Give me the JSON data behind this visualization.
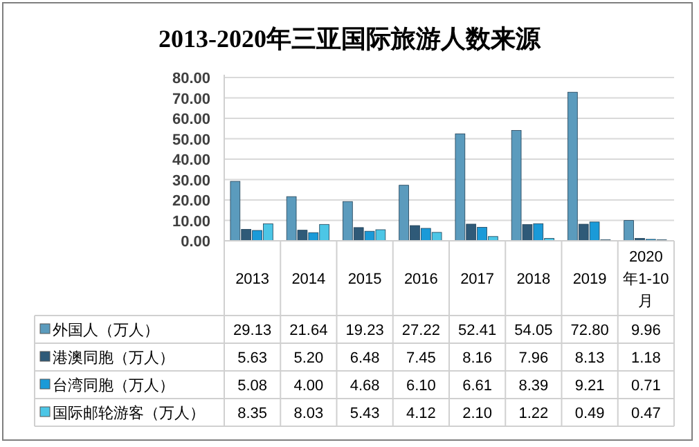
{
  "chart_data": {
    "type": "bar",
    "title": "2013-2020年三亚国际旅游人数来源",
    "categories": [
      "2013",
      "2014",
      "2015",
      "2016",
      "2017",
      "2018",
      "2019",
      "2020年1-10月"
    ],
    "series": [
      {
        "name": "外国人（万人）",
        "color": "#5b9bbd",
        "values": [
          29.13,
          21.64,
          19.23,
          27.22,
          52.41,
          54.05,
          72.8,
          9.96
        ],
        "value_labels": [
          "29.13",
          "21.64",
          "19.23",
          "27.22",
          "52.41",
          "54.05",
          "72.80",
          "9.96"
        ]
      },
      {
        "name": "港澳同胞（万人）",
        "color": "#2f5a78",
        "values": [
          5.63,
          5.2,
          6.48,
          7.45,
          8.16,
          7.96,
          8.13,
          1.18
        ],
        "value_labels": [
          "5.63",
          "5.20",
          "6.48",
          "7.45",
          "8.16",
          "7.96",
          "8.13",
          "1.18"
        ]
      },
      {
        "name": "台湾同胞（万人）",
        "color": "#1a9ad8",
        "values": [
          5.08,
          4.0,
          4.68,
          6.1,
          6.61,
          8.39,
          9.21,
          0.71
        ],
        "value_labels": [
          "5.08",
          "4.00",
          "4.68",
          "6.10",
          "6.61",
          "8.39",
          "9.21",
          "0.71"
        ]
      },
      {
        "name": "国际邮轮游客（万人）",
        "color": "#4cc6e6",
        "values": [
          8.35,
          8.03,
          5.43,
          4.12,
          2.1,
          1.22,
          0.49,
          0.47
        ],
        "value_labels": [
          "8.35",
          "8.03",
          "5.43",
          "4.12",
          "2.10",
          "1.22",
          "0.49",
          "0.47"
        ]
      }
    ],
    "ylim": [
      0,
      80
    ],
    "yticks": [
      {
        "value": 0,
        "label": "0.00"
      },
      {
        "value": 10,
        "label": "10.00"
      },
      {
        "value": 20,
        "label": "20.00"
      },
      {
        "value": 30,
        "label": "30.00"
      },
      {
        "value": 40,
        "label": "40.00"
      },
      {
        "value": 50,
        "label": "50.00"
      },
      {
        "value": 60,
        "label": "60.00"
      },
      {
        "value": 70,
        "label": "70.00"
      },
      {
        "value": 80,
        "label": "80.00"
      }
    ],
    "grid": "y",
    "legend": "bottom"
  }
}
